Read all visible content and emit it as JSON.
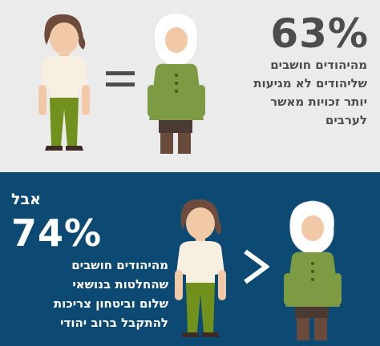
{
  "top": {
    "percent": "63%",
    "statement_lines": [
      "מהיהודים חושבים",
      "שליהודים לא מגיעות",
      "יותר זכויות מאשר",
      "לערבים"
    ],
    "comparison_symbol": "equals-icon"
  },
  "bottom": {
    "intro": "אבל",
    "percent": "74%",
    "statement_lines": [
      "מהיהודים חושבים",
      "שהחלטות בנושאי",
      "שלום וביטחון צריכות",
      "להתקבל ברוב יהודי"
    ],
    "comparison_symbol": "greater-than-icon"
  },
  "colors": {
    "top_background": "#ebebeb",
    "bottom_background": "#0d4a73",
    "top_text": "#4d4d4d",
    "bottom_text": "#ffffff",
    "jewish_woman_shirt": "#f7f0e1",
    "jewish_woman_pants": "#72901c",
    "arab_woman_dress": "#7c9b43",
    "arab_woman_scarf": "#ffffff"
  }
}
